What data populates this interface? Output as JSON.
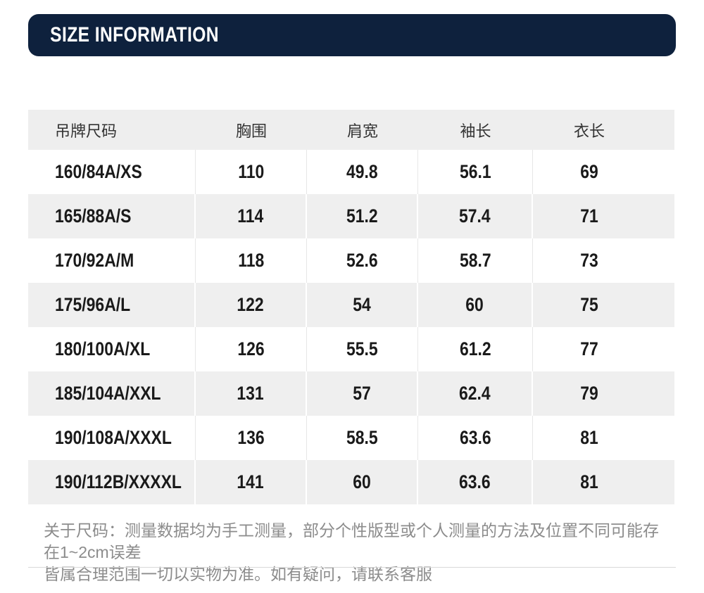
{
  "banner": {
    "title": "SIZE INFORMATION"
  },
  "colors": {
    "banner_bg": "#0e213d",
    "banner_text": "#ffffff",
    "stripe": "#efefef",
    "header_bg": "#eeeeee",
    "data_text": "#1a1a1a",
    "note_text": "#8c8c8c"
  },
  "table": {
    "headers": [
      "吊牌尺码",
      "胸围",
      "肩宽",
      "袖长",
      "衣长"
    ],
    "rows": [
      {
        "cols": [
          "160/84A/XS",
          "110",
          "49.8",
          "56.1",
          "69"
        ]
      },
      {
        "cols": [
          "165/88A/S",
          "114",
          "51.2",
          "57.4",
          "71"
        ]
      },
      {
        "cols": [
          "170/92A/M",
          "118",
          "52.6",
          "58.7",
          "73"
        ]
      },
      {
        "cols": [
          "175/96A/L",
          "122",
          "54",
          "60",
          "75"
        ]
      },
      {
        "cols": [
          "180/100A/XL",
          "126",
          "55.5",
          "61.2",
          "77"
        ]
      },
      {
        "cols": [
          "185/104A/XXL",
          "131",
          "57",
          "62.4",
          "79"
        ]
      },
      {
        "cols": [
          "190/108A/XXXL",
          "136",
          "58.5",
          "63.6",
          "81"
        ]
      },
      {
        "cols": [
          "190/112B/XXXXL",
          "141",
          "60",
          "63.6",
          "81"
        ]
      }
    ]
  },
  "footnote": {
    "line1": "关于尺码：测量数据均为手工测量，部分个性版型或个人测量的方法及位置不同可能存在1~2cm误差",
    "line2": "皆属合理范围一切以实物为准。如有疑问，请联系客服"
  }
}
